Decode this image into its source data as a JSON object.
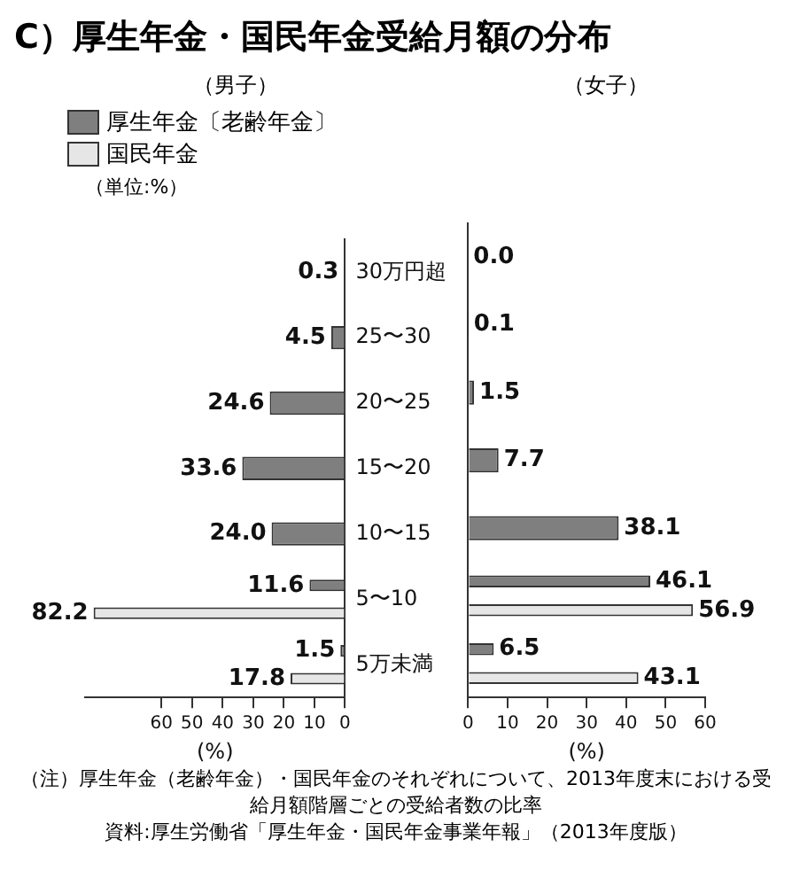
{
  "chart_data": [
    {
      "type": "bar",
      "orientation": "horizontal",
      "title": "C）厚生年金・国民年金受給月額の分布",
      "subtitle": "（男子）",
      "xlabel": "(%)",
      "categories": [
        "30万円超",
        "25〜30",
        "20〜25",
        "15〜20",
        "10〜15",
        "5〜10",
        "5万未満"
      ],
      "series": [
        {
          "name": "厚生年金〔老齢年金〕",
          "color": "#7f7f7f",
          "values": [
            0.3,
            4.5,
            24.6,
            33.6,
            24.0,
            11.6,
            1.5
          ],
          "value_labels": [
            "0.3",
            "4.5",
            "24.6",
            "33.6",
            "24.0",
            "11.6",
            "1.5"
          ]
        },
        {
          "name": "国民年金",
          "color": "#e6e6e6",
          "values": [
            null,
            null,
            null,
            null,
            null,
            82.2,
            17.8
          ],
          "value_labels": [
            null,
            null,
            null,
            null,
            null,
            "82.2",
            "17.8"
          ]
        }
      ],
      "xlim": [
        85,
        0
      ],
      "xticks": [
        60,
        50,
        40,
        30,
        20,
        10,
        0
      ],
      "grid": false,
      "legend": "top left",
      "annotations": [
        "（単位:%）"
      ]
    },
    {
      "type": "bar",
      "orientation": "horizontal",
      "subtitle": "（女子）",
      "xlabel": "(%)",
      "categories": [
        null,
        null,
        null,
        null,
        null,
        null,
        null
      ],
      "series": [
        {
          "color": "#7f7f7f",
          "values": [
            0,
            0.1,
            1.5,
            7.7,
            38.1,
            46.1,
            6.5
          ],
          "value_labels": [
            "0.0",
            "0.1",
            "1.5",
            "7.7",
            "38.1",
            "46.1",
            "6.5"
          ]
        },
        {
          "color": "#e6e6e6",
          "values": [
            null,
            null,
            null,
            null,
            null,
            56.9,
            43.1
          ],
          "value_labels": [
            null,
            null,
            null,
            null,
            null,
            "56.9",
            "43.1"
          ]
        }
      ],
      "xlim": [
        0,
        60
      ],
      "xticks": [
        0,
        10,
        20,
        30,
        40,
        50,
        60
      ],
      "grid": false,
      "legend": false,
      "tick_labels": "x",
      "annotations": [
        "（注）厚生年金（老齢年金）・国民年金のそれぞれについて、2013年度末における受給月額階層ごとの受給者数の比率",
        "資料:厚生労働省「厚生年金・国民年金事業年報」（2013年度版）"
      ]
    }
  ]
}
